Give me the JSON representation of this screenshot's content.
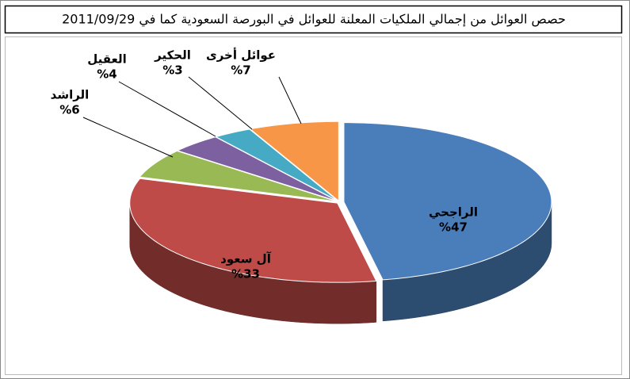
{
  "chart_data": {
    "type": "pie3d",
    "title": "حصص العوائل من إجمالي الملكيات المعلنة للعوائل في البورصة السعودية كما في 2011/09/29",
    "categories": [
      "الراجحي",
      "آل سعود",
      "الراشد",
      "العقيل",
      "الحكير",
      "عوائل أخرى"
    ],
    "values": [
      47,
      33,
      6,
      4,
      3,
      7
    ],
    "value_labels": [
      "%47",
      "%33",
      "%6",
      "%4",
      "%3",
      "%7"
    ],
    "colors": [
      "#4a7ebb",
      "#be4b48",
      "#98b954",
      "#7d60a0",
      "#46aac5",
      "#f79646"
    ]
  }
}
